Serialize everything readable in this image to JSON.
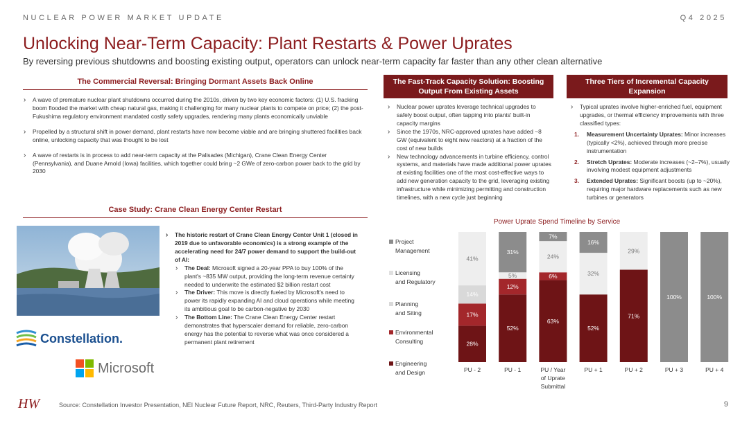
{
  "header": {
    "topline": "NUCLEAR POWER MARKET UPDATE",
    "quarter": "Q4 2025",
    "title": "Unlocking Near-Term Capacity: Plant Restarts & Power Uprates",
    "subtitle": "By reversing previous shutdowns and boosting existing output, operators can unlock near-term capacity far faster than any other clean alternative"
  },
  "left": {
    "section_title": "The Commercial Reversal: Bringing Dormant Assets Back Online",
    "bullets": [
      "A wave of premature nuclear plant shutdowns occurred during the 2010s, driven by two key economic factors: (1) U.S. fracking boom flooded the market with cheap natural gas, making it challenging for many nuclear plants to compete on price; (2) the post-Fukushima regulatory environment mandated costly safety upgrades, rendering many plants economically unviable",
      "Propelled by a structural shift in power demand, plant restarts have now become viable and are bringing shuttered facilities back online, unlocking capacity that was thought to be lost",
      "A wave of restarts is in process to add near-term capacity at the Palisades (Michigan), Crane Clean Energy Center (Pennsylvania), and Duane Arnold (Iowa) facilities, which together could bring ~2 GWe of zero-carbon power back to the grid by 2030"
    ]
  },
  "case_study": {
    "section_title": "Case Study: Crane Clean Energy Center Restart",
    "lead": "The historic restart of Crane Clean Energy Center Unit 1 (closed in 2019 due to unfavorable economics) is a strong example of the accelerating need for 24/7 power demand to support the build-out of AI:",
    "points": [
      {
        "label": "The Deal:",
        "text": "Microsoft signed a 20-year PPA to buy 100% of the plant's ~835 MW output, providing the long-term revenue certainty needed to underwrite the estimated $2 billion restart cost"
      },
      {
        "label": "The Driver:",
        "text": "This move is directly fueled by Microsoft's need to power its rapidly expanding AI and cloud operations while meeting its ambitious goal to be carbon-negative by 2030"
      },
      {
        "label": "The Bottom Line:",
        "text": "The Crane Clean Energy Center restart demonstrates that hyperscaler demand for reliable, zero-carbon energy has the potential to reverse what was once considered a permanent plant retirement"
      }
    ],
    "logo_constellation": "Constellation.",
    "logo_microsoft": "Microsoft"
  },
  "middle": {
    "header": "The Fast-Track Capacity Solution: Boosting Output From Existing Assets",
    "bullets": [
      "Nuclear power uprates leverage technical upgrades to safely boost output, often tapping into plants' built-in capacity margins",
      "Since the 1970s, NRC-approved uprates have added ~8 GW (equivalent to eight new reactors) at a fraction of the cost of new builds",
      "New technology advancements in turbine efficiency, control systems, and materials have made additional power uprates at existing facilities one of the most cost-effective ways to add new generation capacity to the grid, leveraging existing infrastructure while minimizing permitting and construction timelines, with a new cycle just beginning"
    ]
  },
  "right": {
    "header": "Three Tiers of Incremental Capacity Expansion",
    "intro": "Typical uprates involve higher-enriched fuel, equipment upgrades, or thermal efficiency improvements with three classified types:",
    "tiers": [
      {
        "n": "1.",
        "label": "Measurement Uncertainty Uprates:",
        "text": "Minor increases (typically <2%), achieved through more precise instrumentation"
      },
      {
        "n": "2.",
        "label": "Stretch Uprates:",
        "text": "Moderate increases (~2–7%), usually involving modest equipment adjustments"
      },
      {
        "n": "3.",
        "label": "Extended Uprates:",
        "text": "Significant boosts (up to ~20%), requiring major hardware replacements such as new turbines or generators"
      }
    ]
  },
  "chart_data": {
    "type": "bar",
    "stacked": true,
    "title": "Power Uprate Spend Timeline by Service",
    "categories": [
      "PU - 2",
      "PU - 1",
      "PU / Year of Uprate Submittal",
      "PU + 1",
      "PU + 2",
      "PU + 3",
      "PU + 4"
    ],
    "series": [
      {
        "name": "Engineering and Design",
        "color": "#6e1416",
        "values": [
          28,
          52,
          63,
          52,
          71,
          0,
          0
        ]
      },
      {
        "name": "Environmental Consulting",
        "color": "#a3272b",
        "values": [
          17,
          12,
          6,
          0,
          0,
          0,
          0
        ]
      },
      {
        "name": "Planning and Siting",
        "color": "#d9d9d9",
        "values": [
          14,
          0,
          0,
          0,
          0,
          0,
          0
        ]
      },
      {
        "name": "Licensing and Regulatory",
        "color": "#eeeeee",
        "values": [
          41,
          5,
          24,
          32,
          29,
          0,
          0
        ]
      },
      {
        "name": "Project Management",
        "color": "#8c8c8c",
        "values": [
          0,
          31,
          7,
          16,
          0,
          100,
          100
        ]
      }
    ],
    "labels_pct": true,
    "ylim": [
      0,
      100
    ]
  },
  "footer": {
    "source": "Source: Constellation Investor Presentation, NEI Nuclear Future Report, NRC, Reuters, Third-Party Industry Report",
    "page": "9",
    "logo": "HW"
  }
}
